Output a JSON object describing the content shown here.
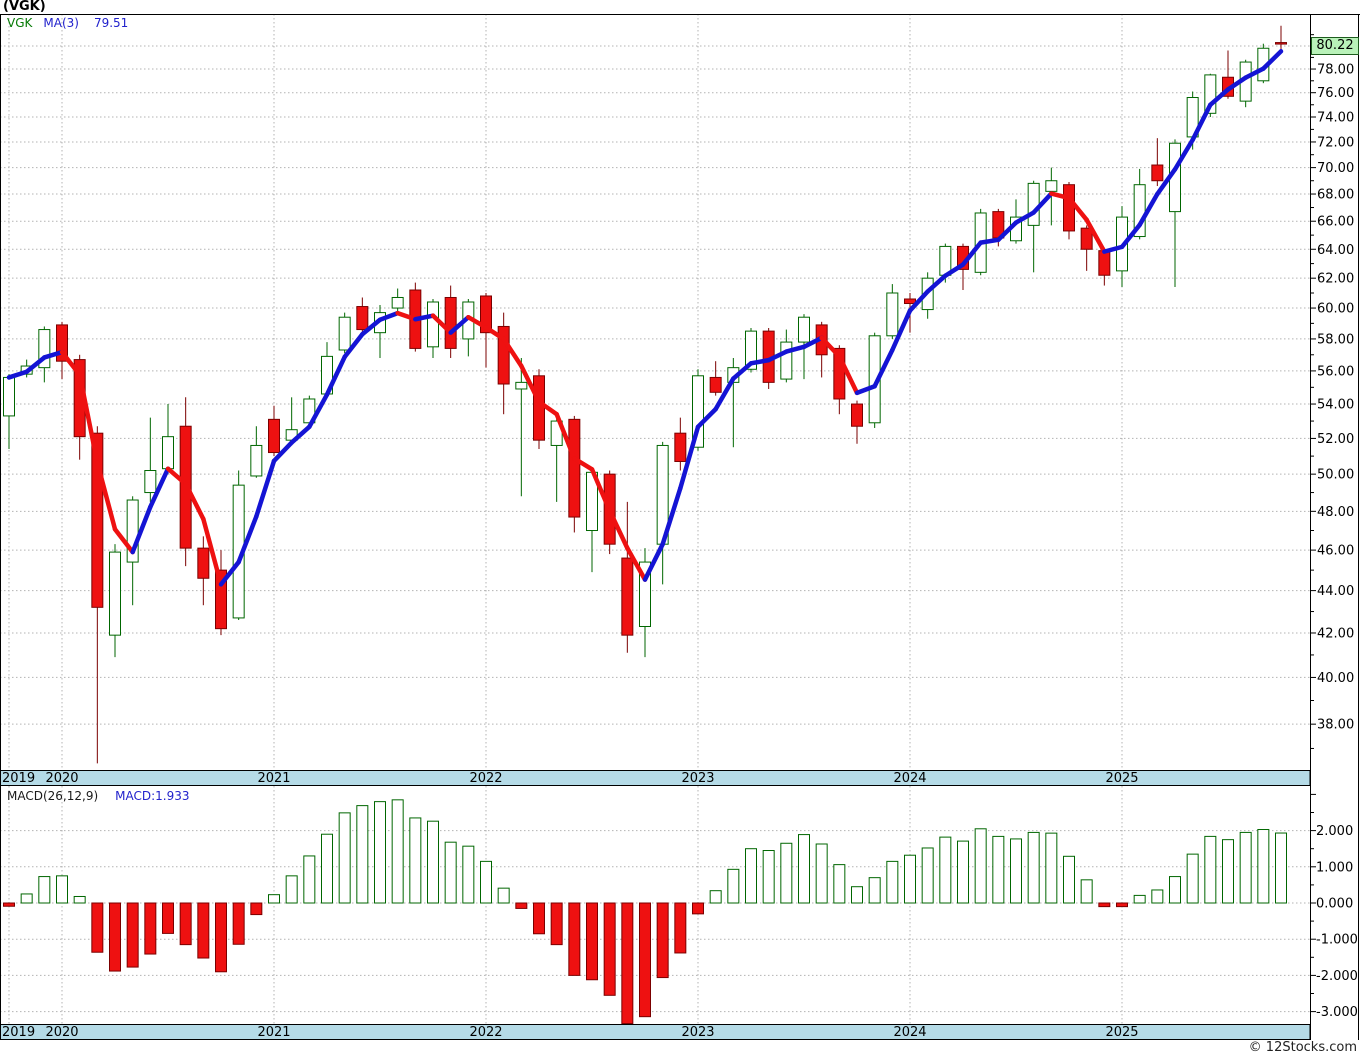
{
  "header": {
    "title": "(VGK)"
  },
  "price_panel": {
    "legend": {
      "symbol": "VGK",
      "ma_label": "MA(3)",
      "ma_value": "79.51"
    },
    "badge": "80.22",
    "y_tick_labels": [
      "80.00",
      "78.00",
      "76.00",
      "74.00",
      "72.00",
      "70.00",
      "68.00",
      "66.00",
      "64.00",
      "62.00",
      "60.00",
      "58.00",
      "56.00",
      "54.00",
      "52.00",
      "50.00",
      "48.00",
      "46.00",
      "44.00",
      "42.00",
      "40.00",
      "38.00"
    ]
  },
  "macd_panel": {
    "label": "MACD(26,12,9)",
    "value": "MACD:1.933",
    "y_tick_labels": [
      "2.000",
      "1.000",
      "0.000",
      "-1.000",
      "-2.000",
      "-3.000"
    ]
  },
  "x_axis": {
    "years": [
      {
        "label": "2019",
        "bar": 0
      },
      {
        "label": "2020",
        "bar": 3
      },
      {
        "label": "2021",
        "bar": 15
      },
      {
        "label": "2022",
        "bar": 27
      },
      {
        "label": "2023",
        "bar": 39
      },
      {
        "label": "2024",
        "bar": 51
      },
      {
        "label": "2025",
        "bar": 63
      }
    ]
  },
  "watermark": "© 12Stocks.com",
  "chart_data": {
    "type": "candlestick",
    "symbol": "VGK",
    "title": "(VGK)",
    "scale": "log",
    "price_axis_range": [
      37,
      81
    ],
    "macd_axis_range": [
      -3.5,
      2.5
    ],
    "legend_position": "top-left",
    "grid": true,
    "last_price": 80.22,
    "ma_period": 3,
    "ma_last_value": 79.51,
    "macd_params": "26,12,9",
    "macd_last_value": 1.933,
    "candles_ohlc": [
      [
        53.3,
        55.8,
        51.4,
        55.6
      ],
      [
        55.8,
        56.7,
        55.6,
        56.3
      ],
      [
        56.2,
        58.8,
        55.3,
        58.6
      ],
      [
        58.9,
        59.1,
        55.5,
        56.6
      ],
      [
        56.7,
        57.0,
        50.8,
        52.1
      ],
      [
        52.3,
        52.7,
        36.4,
        43.2
      ],
      [
        41.9,
        46.3,
        40.9,
        45.9
      ],
      [
        45.4,
        48.8,
        43.3,
        48.6
      ],
      [
        49.0,
        53.2,
        48.5,
        50.2
      ],
      [
        50.3,
        54.0,
        50.0,
        52.1
      ],
      [
        52.7,
        54.4,
        45.2,
        46.1
      ],
      [
        46.1,
        46.7,
        43.3,
        44.6
      ],
      [
        45.0,
        46.0,
        41.9,
        42.2
      ],
      [
        42.7,
        50.2,
        42.6,
        49.4
      ],
      [
        49.9,
        52.7,
        49.8,
        51.6
      ],
      [
        53.1,
        53.9,
        51.0,
        51.2
      ],
      [
        51.9,
        54.4,
        51.6,
        52.5
      ],
      [
        52.9,
        54.5,
        52.7,
        54.3
      ],
      [
        54.6,
        57.8,
        54.4,
        56.9
      ],
      [
        57.3,
        59.7,
        57.1,
        59.4
      ],
      [
        60.1,
        60.7,
        58.4,
        58.6
      ],
      [
        58.4,
        60.2,
        56.8,
        59.7
      ],
      [
        60.0,
        61.3,
        59.8,
        60.7
      ],
      [
        61.2,
        61.7,
        57.2,
        57.4
      ],
      [
        57.5,
        60.6,
        56.8,
        60.4
      ],
      [
        60.7,
        61.5,
        56.8,
        57.4
      ],
      [
        58.0,
        60.6,
        56.9,
        60.4
      ],
      [
        60.8,
        61.0,
        56.2,
        58.4
      ],
      [
        58.8,
        59.7,
        53.4,
        55.2
      ],
      [
        54.9,
        56.8,
        48.8,
        55.3
      ],
      [
        55.7,
        56.1,
        51.4,
        51.9
      ],
      [
        51.6,
        53.2,
        48.5,
        53.0
      ],
      [
        53.1,
        53.3,
        46.9,
        47.7
      ],
      [
        47.0,
        50.3,
        44.9,
        50.1
      ],
      [
        50.0,
        50.2,
        45.8,
        46.3
      ],
      [
        45.6,
        48.5,
        41.1,
        41.9
      ],
      [
        42.3,
        46.1,
        40.9,
        45.4
      ],
      [
        46.3,
        51.8,
        44.3,
        51.6
      ],
      [
        52.3,
        53.2,
        50.2,
        50.7
      ],
      [
        51.5,
        56.1,
        51.3,
        55.7
      ],
      [
        55.6,
        56.6,
        54.5,
        54.7
      ],
      [
        55.3,
        56.8,
        51.5,
        56.2
      ],
      [
        56.1,
        58.7,
        55.9,
        58.5
      ],
      [
        58.5,
        58.7,
        54.9,
        55.3
      ],
      [
        55.5,
        58.6,
        55.3,
        57.8
      ],
      [
        57.8,
        59.6,
        55.5,
        59.4
      ],
      [
        58.9,
        59.1,
        55.6,
        57.0
      ],
      [
        57.4,
        57.6,
        53.4,
        54.3
      ],
      [
        54.0,
        54.2,
        51.7,
        52.7
      ],
      [
        52.9,
        58.4,
        52.6,
        58.2
      ],
      [
        58.2,
        61.6,
        58.0,
        61.0
      ],
      [
        60.6,
        61.0,
        58.4,
        60.3
      ],
      [
        59.9,
        62.4,
        59.3,
        62.0
      ],
      [
        62.2,
        64.4,
        61.7,
        64.2
      ],
      [
        64.2,
        64.4,
        61.2,
        62.6
      ],
      [
        62.4,
        66.9,
        62.2,
        66.6
      ],
      [
        66.7,
        66.9,
        64.2,
        64.8
      ],
      [
        64.6,
        67.6,
        64.4,
        66.3
      ],
      [
        65.7,
        69.0,
        62.4,
        68.8
      ],
      [
        68.2,
        70.0,
        65.7,
        69.0
      ],
      [
        68.7,
        68.9,
        64.7,
        65.3
      ],
      [
        65.5,
        65.7,
        62.5,
        64.0
      ],
      [
        63.9,
        64.1,
        61.5,
        62.2
      ],
      [
        62.5,
        67.1,
        61.4,
        66.3
      ],
      [
        64.9,
        69.9,
        64.7,
        68.7
      ],
      [
        70.2,
        72.3,
        68.6,
        69.0
      ],
      [
        66.7,
        72.2,
        61.4,
        71.9
      ],
      [
        72.4,
        76.1,
        71.4,
        75.6
      ],
      [
        74.3,
        77.6,
        74.0,
        77.5
      ],
      [
        77.3,
        79.6,
        75.5,
        75.7
      ],
      [
        75.3,
        78.8,
        74.8,
        78.6
      ],
      [
        77.0,
        80.2,
        76.8,
        79.8
      ],
      [
        80.3,
        81.8,
        79.3,
        80.2
      ]
    ],
    "macd_values": [
      -0.09,
      0.25,
      0.73,
      0.75,
      0.18,
      -1.36,
      -1.88,
      -1.77,
      -1.41,
      -0.84,
      -1.15,
      -1.52,
      -1.9,
      -1.14,
      -0.32,
      0.23,
      0.75,
      1.3,
      1.9,
      2.49,
      2.69,
      2.8,
      2.85,
      2.35,
      2.26,
      1.68,
      1.57,
      1.15,
      0.41,
      -0.15,
      -0.85,
      -1.15,
      -2.0,
      -2.12,
      -2.55,
      -3.33,
      -3.14,
      -2.06,
      -1.38,
      -0.3,
      0.34,
      0.93,
      1.5,
      1.45,
      1.65,
      1.89,
      1.63,
      1.06,
      0.45,
      0.7,
      1.15,
      1.32,
      1.52,
      1.82,
      1.71,
      2.05,
      1.84,
      1.77,
      1.95,
      1.93,
      1.29,
      0.64,
      -0.1,
      -0.1,
      0.21,
      0.36,
      0.73,
      1.35,
      1.84,
      1.75,
      1.95,
      2.03,
      1.933
    ],
    "colors": {
      "up_outline": "#006600",
      "up_fill": "#ffffff",
      "down_fill": "#ee1111",
      "down_outline": "#7b0000",
      "ma_up": "#1414d4",
      "ma_down": "#ee1111",
      "band": "#b5dbe7",
      "badge_bg": "#b9f2b9",
      "grid": "#b3b3b3",
      "axis": "#000000"
    }
  }
}
